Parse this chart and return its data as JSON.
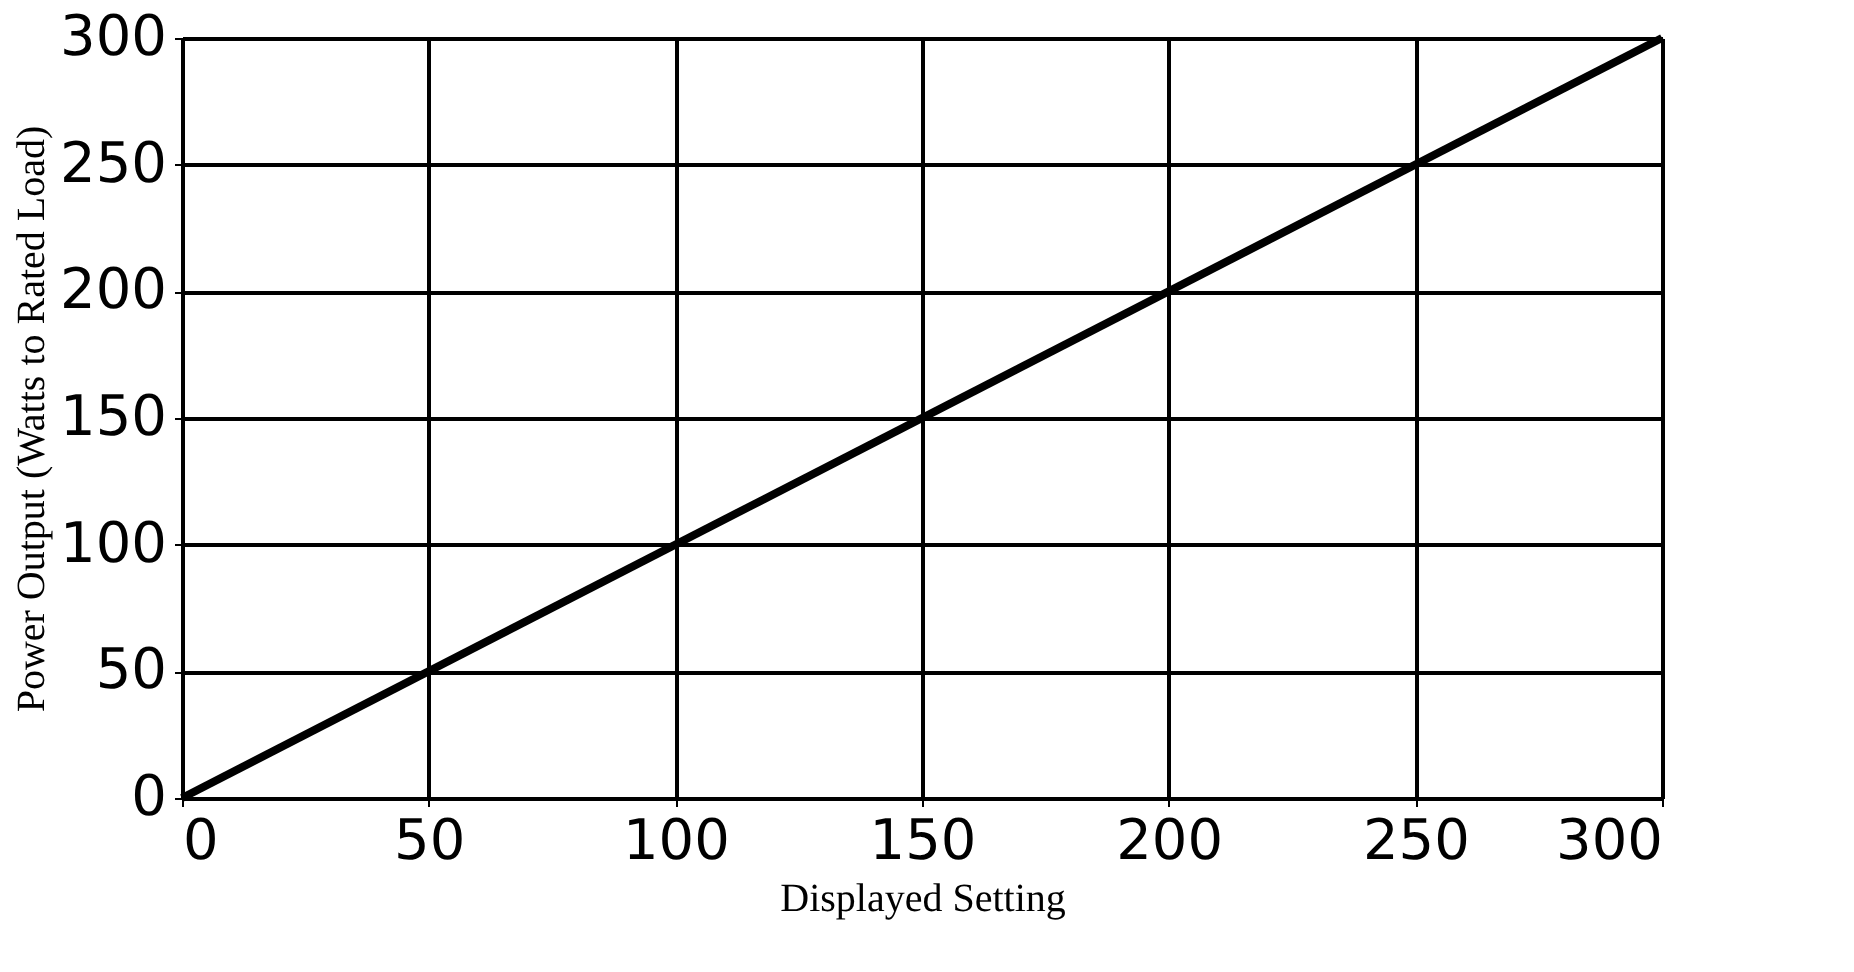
{
  "chart_data": {
    "type": "line",
    "xlabel": "Displayed Setting",
    "ylabel": "Power Output (Watts to Rated Load)",
    "x": [
      0,
      300
    ],
    "series": [
      {
        "color": "#000000",
        "values": [
          0,
          300
        ]
      }
    ],
    "xlim": [
      0,
      300
    ],
    "ylim": [
      0,
      300
    ],
    "xticks": [
      0,
      50,
      100,
      150,
      200,
      250,
      300
    ],
    "yticks": [
      0,
      50,
      100,
      150,
      200,
      250,
      300
    ],
    "grid": true,
    "legend": false,
    "marker": "none",
    "line_style": "solid"
  }
}
